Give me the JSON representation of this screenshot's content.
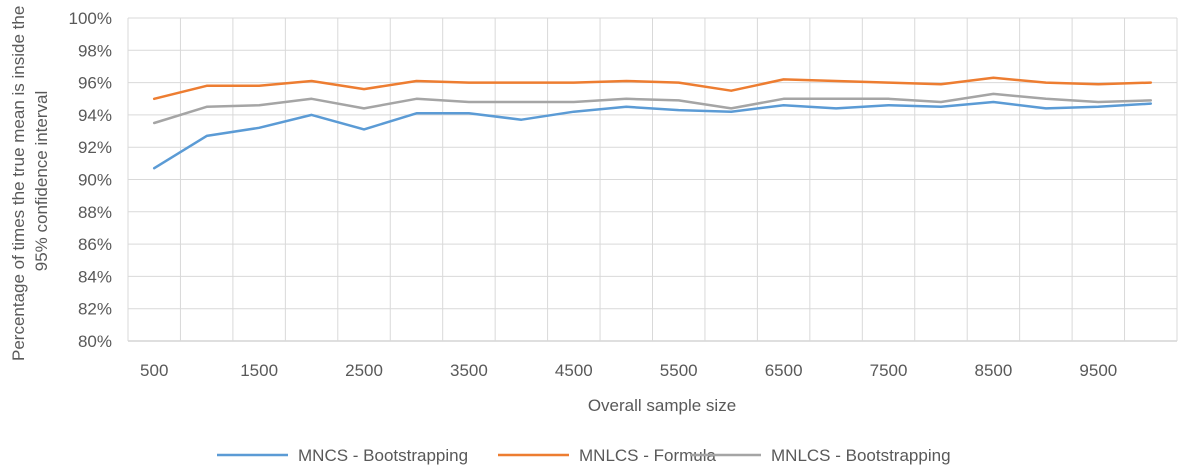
{
  "chart_data": {
    "type": "line",
    "xlabel": "Overall sample size",
    "ylabel_lines": [
      "Percentage of times the true mean is inside the",
      "95% confidence interval"
    ],
    "x": [
      500,
      1000,
      1500,
      2000,
      2500,
      3000,
      3500,
      4000,
      4500,
      5000,
      5500,
      6000,
      6500,
      7000,
      7500,
      8000,
      8500,
      9000,
      9500,
      10000
    ],
    "x_tick_labels": [
      "500",
      "1500",
      "2500",
      "3500",
      "4500",
      "5500",
      "6500",
      "7500",
      "8500",
      "9500"
    ],
    "y_tick_labels": [
      "80%",
      "82%",
      "84%",
      "86%",
      "88%",
      "90%",
      "92%",
      "94%",
      "96%",
      "98%",
      "100%"
    ],
    "ylim": [
      80,
      100
    ],
    "y_unit": "%",
    "grid": true,
    "legend_position": "bottom",
    "series": [
      {
        "name": "MNCS - Bootstrapping",
        "color": "#5B9BD5",
        "values": [
          90.7,
          92.7,
          93.2,
          94.0,
          93.1,
          94.1,
          94.1,
          93.7,
          94.2,
          94.5,
          94.3,
          94.2,
          94.6,
          94.4,
          94.6,
          94.5,
          94.8,
          94.4,
          94.5,
          94.7
        ]
      },
      {
        "name": "MNLCS - Formula",
        "color": "#ED7D31",
        "values": [
          95.0,
          95.8,
          95.8,
          96.1,
          95.6,
          96.1,
          96.0,
          96.0,
          96.0,
          96.1,
          96.0,
          95.5,
          96.2,
          96.1,
          96.0,
          95.9,
          96.3,
          96.0,
          95.9,
          96.0
        ]
      },
      {
        "name": "MNLCS - Bootstrapping",
        "color": "#A5A5A5",
        "values": [
          93.5,
          94.5,
          94.6,
          95.0,
          94.4,
          95.0,
          94.8,
          94.8,
          94.8,
          95.0,
          94.9,
          94.4,
          95.0,
          95.0,
          95.0,
          94.8,
          95.3,
          95.0,
          94.8,
          94.9
        ]
      }
    ]
  }
}
